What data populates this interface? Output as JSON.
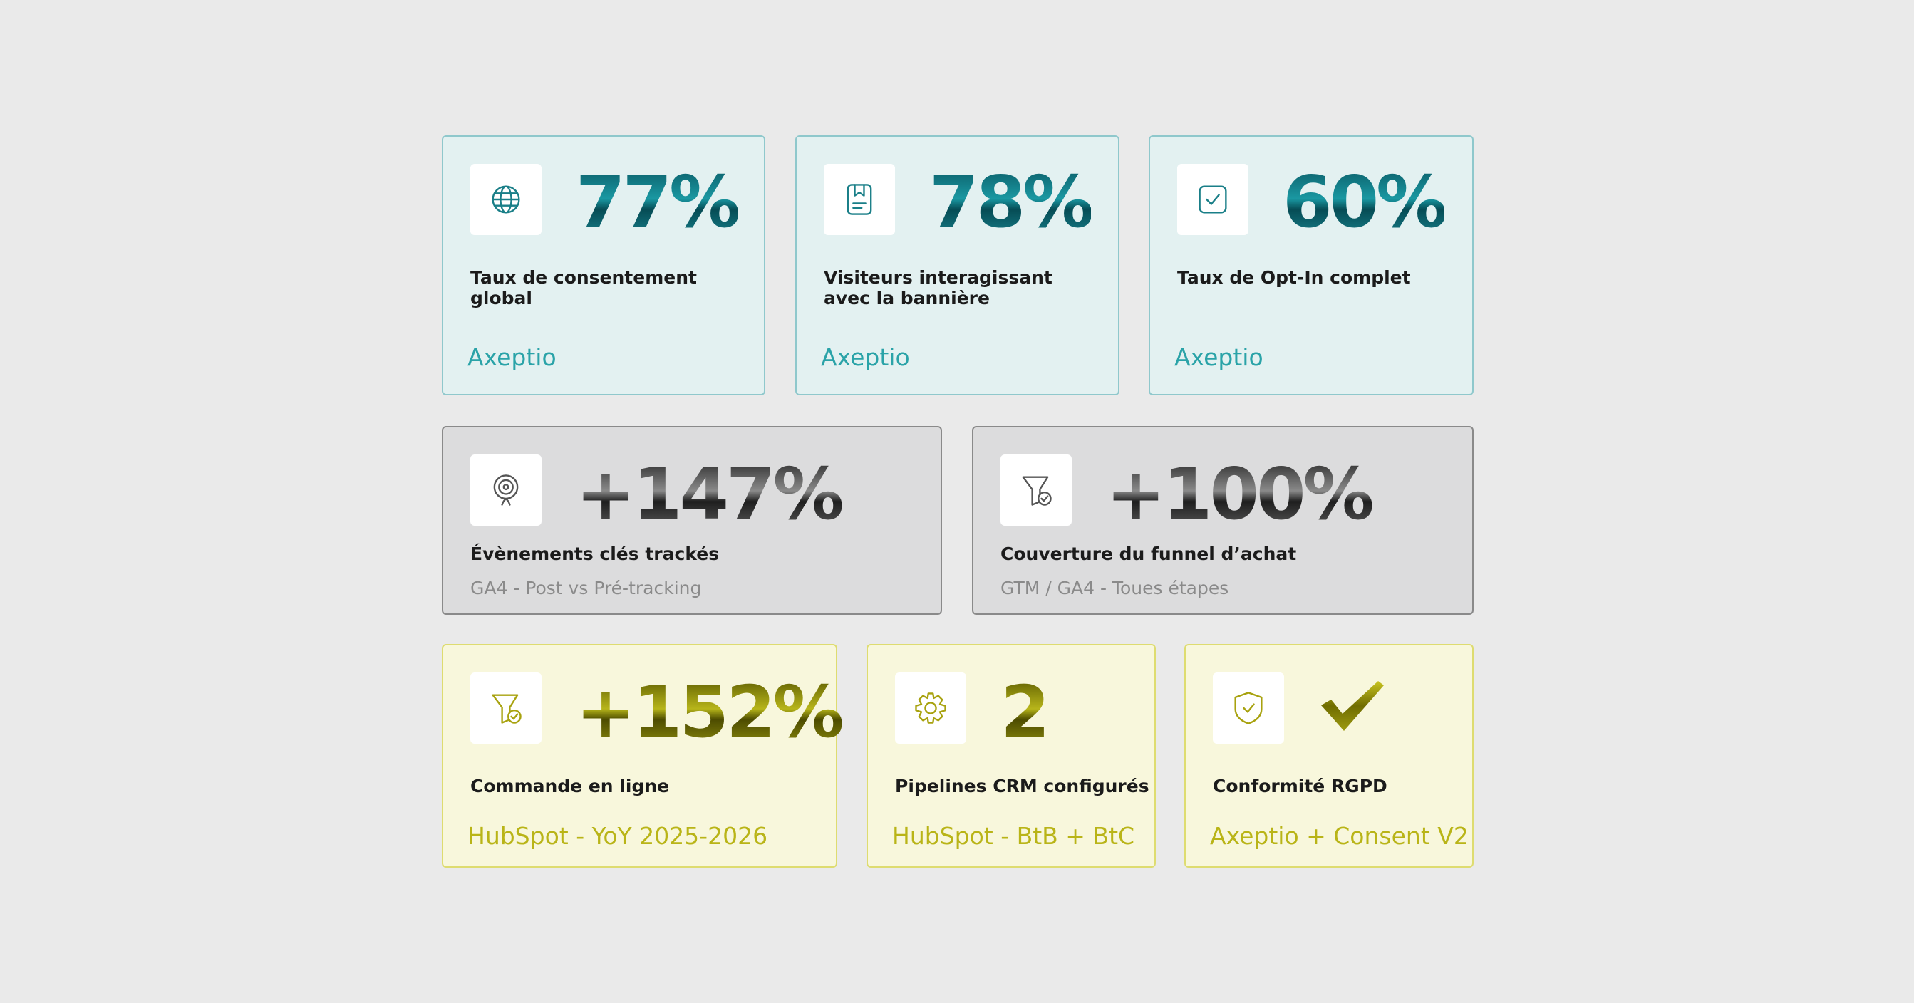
{
  "rows": [
    {
      "cards": [
        {
          "value": "77%",
          "label": "Taux de consentement global",
          "source": "Axeptio"
        },
        {
          "value": "78%",
          "label": "Visiteurs interagissant avec la bannière",
          "source": "Axeptio"
        },
        {
          "value": "60%",
          "label": "Taux de Opt-In complet",
          "source": "Axeptio"
        }
      ]
    },
    {
      "cards": [
        {
          "value": "+147%",
          "label": "Évènements clés trackés",
          "source": "GA4 - Post vs Pré-tracking"
        },
        {
          "value": "+100%",
          "label": "Couverture du funnel d’achat",
          "source": "GTM / GA4 - Toues étapes"
        }
      ]
    },
    {
      "cards": [
        {
          "value": "+152%",
          "label": "Commande en ligne",
          "source": "HubSpot - YoY 2025-2026"
        },
        {
          "value": "2",
          "label": "Pipelines CRM configurés",
          "source": "HubSpot - BtB + BtC"
        },
        {
          "label": "Conformité RGPD",
          "source": "Axeptio + Consent V2"
        }
      ]
    }
  ]
}
